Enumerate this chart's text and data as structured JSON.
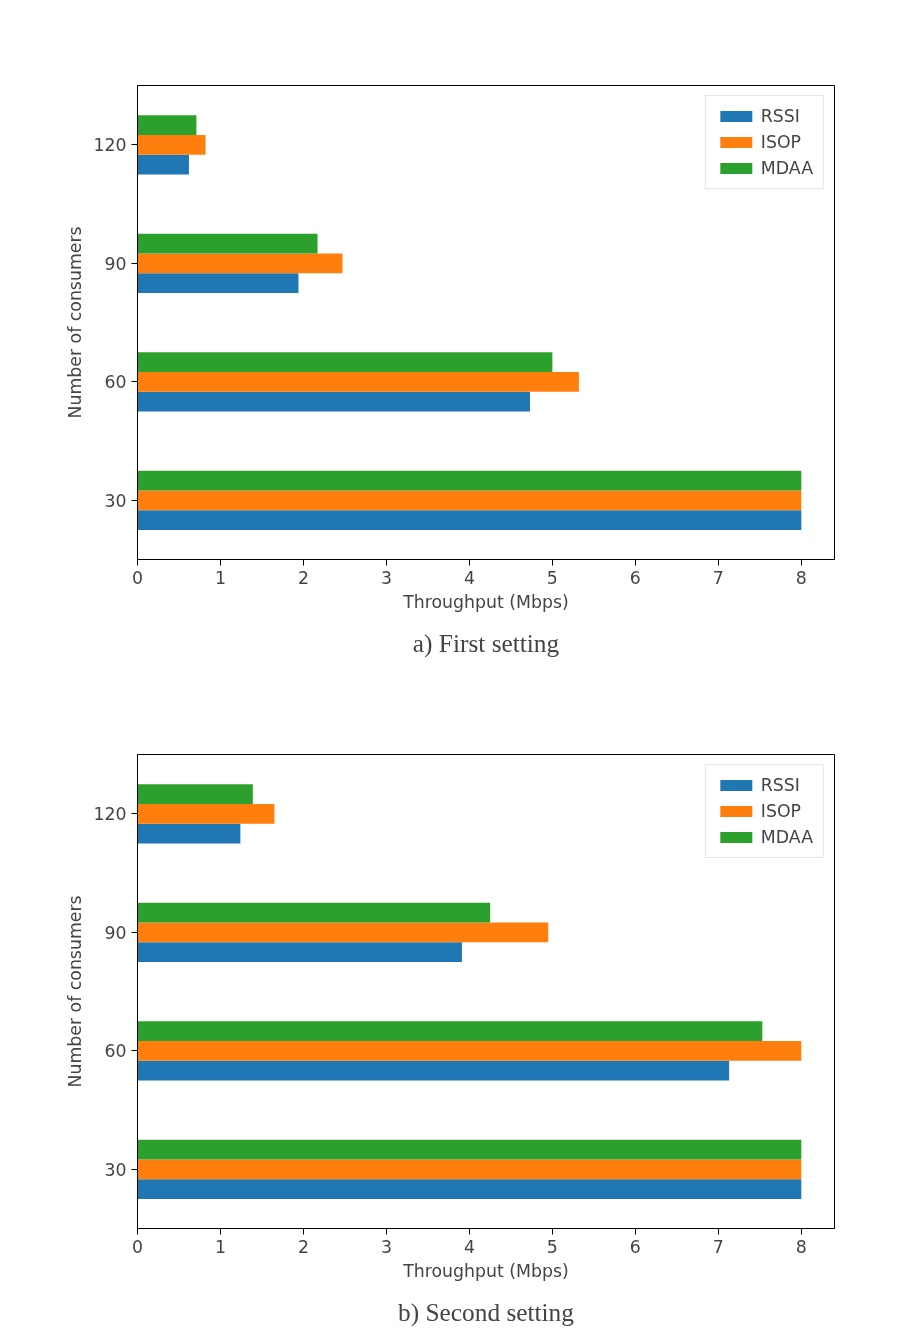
{
  "chart_data": [
    {
      "type": "bar",
      "orientation": "horizontal",
      "categories": [
        "120",
        "90",
        "60",
        "30"
      ],
      "xlabel": "Throughput (Mbps)",
      "ylabel": "Number of consumers",
      "xlim": [
        0,
        8.4
      ],
      "xticks": [
        0,
        1,
        2,
        3,
        4,
        5,
        6,
        7,
        8
      ],
      "grid": false,
      "legend": "top right",
      "annotations": [
        "a) First setting"
      ],
      "series": [
        {
          "name": "RSSI",
          "color": "#1f77b4",
          "values": [
            0.62,
            1.94,
            4.73,
            8
          ]
        },
        {
          "name": "ISOP",
          "color": "#ff7f0e",
          "values": [
            0.82,
            2.47,
            5.32,
            8
          ]
        },
        {
          "name": "MDAA",
          "color": "#2ca02c",
          "values": [
            0.71,
            2.17,
            5.0,
            8
          ]
        }
      ]
    },
    {
      "type": "bar",
      "orientation": "horizontal",
      "categories": [
        "120",
        "90",
        "60",
        "30"
      ],
      "xlabel": "Throughput (Mbps)",
      "ylabel": "Number of consumers",
      "xlim": [
        0,
        8.4
      ],
      "xticks": [
        0,
        1,
        2,
        3,
        4,
        5,
        6,
        7,
        8
      ],
      "grid": false,
      "legend": "top right",
      "annotations": [
        "b) Second setting"
      ],
      "series": [
        {
          "name": "RSSI",
          "color": "#1f77b4",
          "values": [
            1.24,
            3.91,
            7.13,
            8
          ]
        },
        {
          "name": "ISOP",
          "color": "#ff7f0e",
          "values": [
            1.65,
            4.95,
            8,
            8
          ]
        },
        {
          "name": "MDAA",
          "color": "#2ca02c",
          "values": [
            1.39,
            4.25,
            7.53,
            8
          ]
        }
      ]
    }
  ]
}
